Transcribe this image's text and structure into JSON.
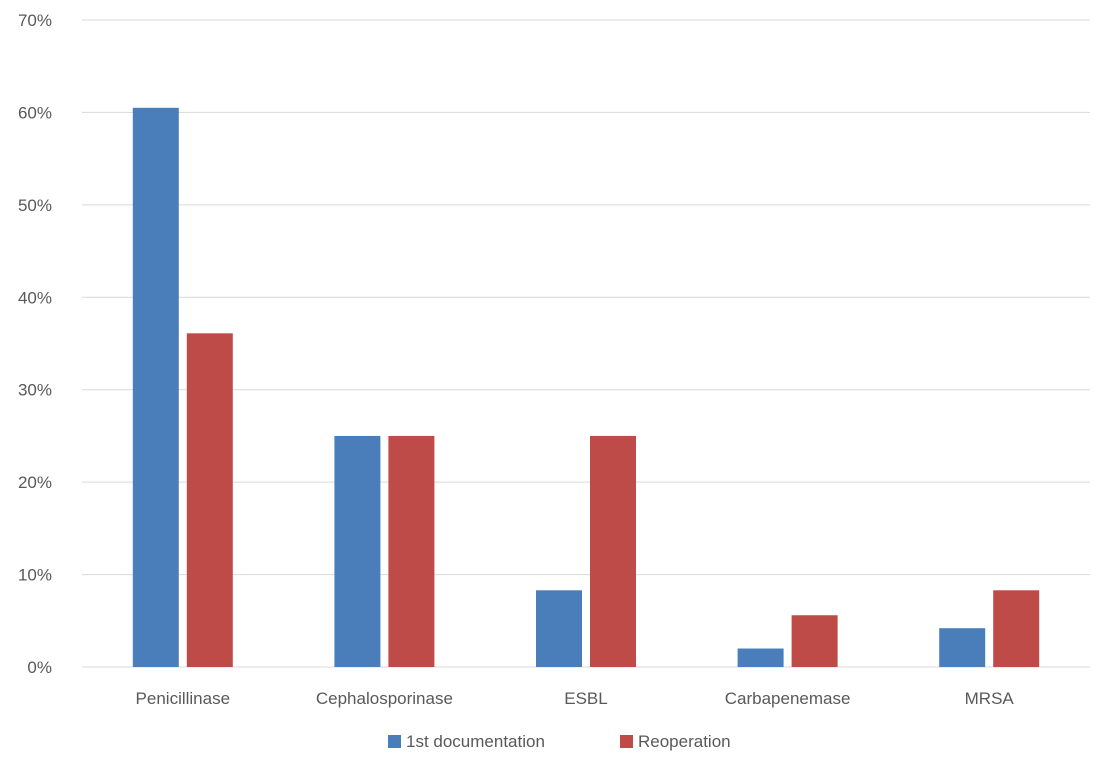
{
  "chart_data": {
    "type": "bar",
    "title": "",
    "xlabel": "",
    "ylabel": "",
    "categories": [
      "Penicillinase",
      "Cephalosporinase",
      "ESBL",
      "Carbapenemase",
      "MRSA"
    ],
    "series": [
      {
        "name": "1st documentation",
        "color": "#4a7ebb",
        "values": [
          60.5,
          25,
          8.3,
          2,
          4.2
        ]
      },
      {
        "name": "Reoperation",
        "color": "#be4b48",
        "values": [
          36.1,
          25,
          25,
          5.6,
          8.3
        ]
      }
    ],
    "ylim": [
      0,
      70
    ],
    "yticks": [
      "0%",
      "10%",
      "20%",
      "30%",
      "40%",
      "50%",
      "60%",
      "70%"
    ],
    "ytick_values": [
      0,
      10,
      20,
      30,
      40,
      50,
      60,
      70
    ],
    "grid": true,
    "legend_position": "bottom",
    "gridline_color": "#d9d9d9",
    "text_color": "#595959"
  }
}
